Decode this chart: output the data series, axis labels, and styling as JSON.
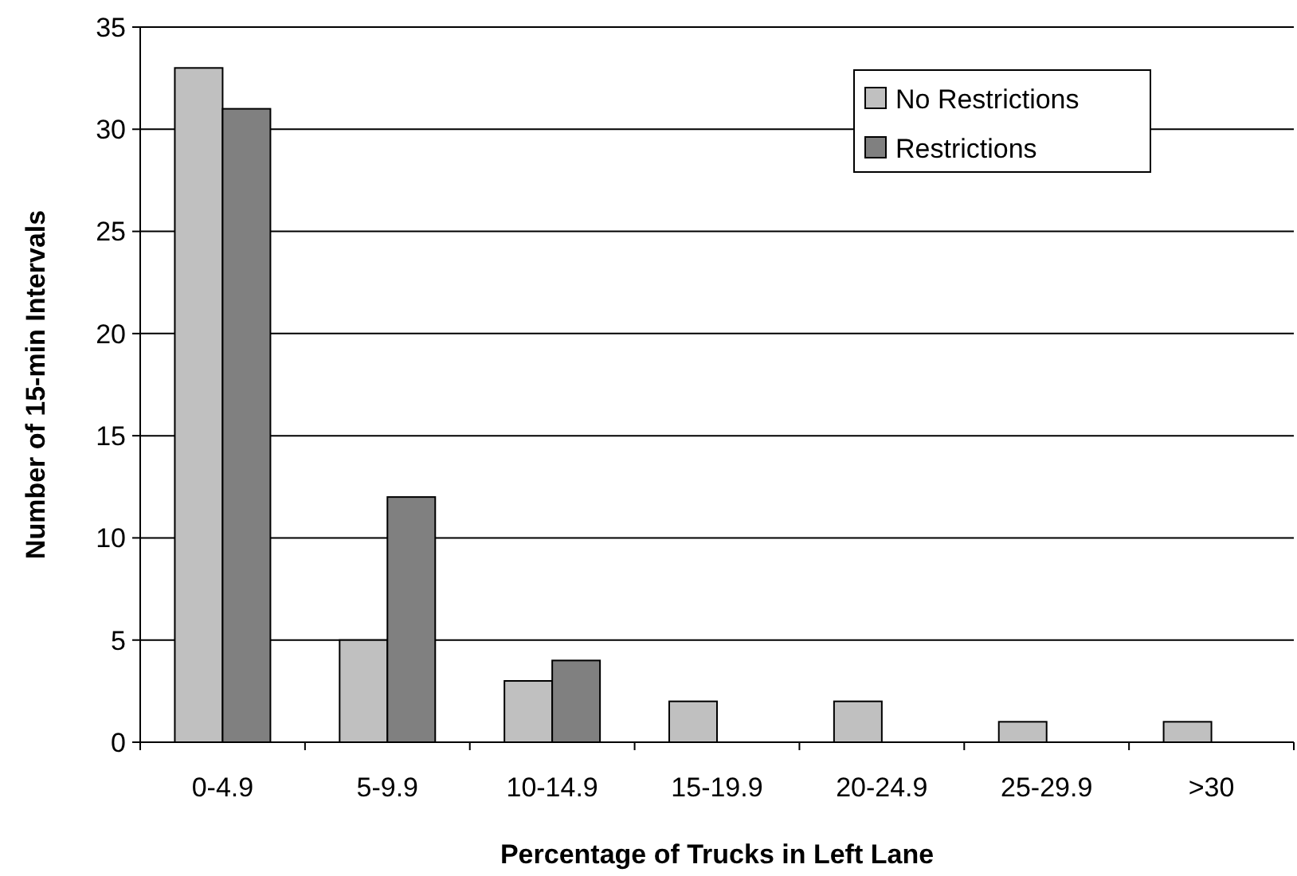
{
  "chart_data": {
    "type": "bar",
    "xlabel": "Percentage of Trucks in Left Lane",
    "ylabel": "Number of 15-min Intervals",
    "categories": [
      "0-4.9",
      "5-9.9",
      "10-14.9",
      "15-19.9",
      "20-24.9",
      "25-29.9",
      ">30"
    ],
    "series": [
      {
        "name": "No Restrictions",
        "color": "#c0c0c0",
        "values": [
          33,
          5,
          3,
          2,
          2,
          1,
          1
        ]
      },
      {
        "name": "Restrictions",
        "color": "#808080",
        "values": [
          31,
          12,
          4,
          0,
          0,
          0,
          0
        ]
      }
    ],
    "ylim": [
      0,
      35
    ],
    "yticks": [
      0,
      5,
      10,
      15,
      20,
      25,
      30,
      35
    ],
    "grid": "y",
    "legend": "top right"
  }
}
